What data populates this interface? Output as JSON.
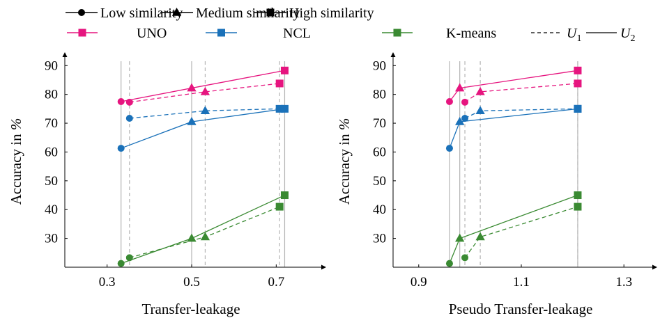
{
  "colors": {
    "uno": "#e6157f",
    "ncl": "#1a71b9",
    "kmeans": "#3a8a32",
    "ref_line": "#b4b4b4"
  },
  "legend": {
    "row1": [
      {
        "marker": "circle",
        "label": "Low similarity"
      },
      {
        "marker": "triangle",
        "label": "Medium similarity"
      },
      {
        "marker": "square",
        "label": "High similarity"
      }
    ],
    "row2": [
      {
        "label": "UNO",
        "color": "#e6157f"
      },
      {
        "label": "NCL",
        "color": "#1a71b9"
      },
      {
        "label": "K-means",
        "color": "#3a8a32"
      }
    ],
    "u1": {
      "style": "dashed",
      "base": "U",
      "sub": "1"
    },
    "u2": {
      "style": "solid",
      "base": "U",
      "sub": "2"
    }
  },
  "chart_data": [
    {
      "type": "line",
      "xlabel": "Transfer-leakage",
      "ylabel_prefix": "Accuracy in ",
      "ylabel_unit": "%",
      "xlim": [
        0.2,
        0.8
      ],
      "ylim": [
        20,
        92
      ],
      "xticks": [
        "0.3",
        "0.5",
        "0.7"
      ],
      "xtick_values": [
        0.3,
        0.5,
        0.7
      ],
      "yticks": [
        "30",
        "40",
        "50",
        "60",
        "70",
        "80",
        "90"
      ],
      "ytick_values": [
        30,
        40,
        50,
        60,
        70,
        80,
        90
      ],
      "reference_x": [
        {
          "x": 0.333,
          "style": "solid"
        },
        {
          "x": 0.353,
          "style": "dashed"
        },
        {
          "x": 0.5,
          "style": "solid"
        },
        {
          "x": 0.532,
          "style": "dashed"
        },
        {
          "x": 0.708,
          "style": "dashed"
        },
        {
          "x": 0.72,
          "style": "solid"
        }
      ],
      "series": [
        {
          "method": "UNO",
          "split": "U1",
          "points": [
            [
              0.353,
              77.3,
              "circle"
            ],
            [
              0.532,
              80.9,
              "triangle"
            ],
            [
              0.708,
              83.8,
              "square"
            ]
          ]
        },
        {
          "method": "UNO",
          "split": "U2",
          "points": [
            [
              0.333,
              77.5,
              "circle"
            ],
            [
              0.5,
              82.2,
              "triangle"
            ],
            [
              0.72,
              88.3,
              "square"
            ]
          ]
        },
        {
          "method": "NCL",
          "split": "U1",
          "points": [
            [
              0.353,
              71.7,
              "circle"
            ],
            [
              0.532,
              74.3,
              "triangle"
            ],
            [
              0.708,
              75.0,
              "square"
            ]
          ]
        },
        {
          "method": "NCL",
          "split": "U2",
          "points": [
            [
              0.333,
              61.3,
              "circle"
            ],
            [
              0.5,
              70.5,
              "triangle"
            ],
            [
              0.72,
              75.0,
              "square"
            ]
          ]
        },
        {
          "method": "K-means",
          "split": "U1",
          "points": [
            [
              0.353,
              23.3,
              "circle"
            ],
            [
              0.532,
              30.5,
              "triangle"
            ],
            [
              0.708,
              41.0,
              "square"
            ]
          ]
        },
        {
          "method": "K-means",
          "split": "U2",
          "points": [
            [
              0.333,
              21.3,
              "circle"
            ],
            [
              0.5,
              30.0,
              "triangle"
            ],
            [
              0.72,
              45.0,
              "square"
            ]
          ]
        }
      ]
    },
    {
      "type": "line",
      "xlabel": "Pseudo Transfer-leakage",
      "ylabel_prefix": "Accuracy in ",
      "ylabel_unit": "%",
      "xlim": [
        0.85,
        1.35
      ],
      "ylim": [
        20,
        92
      ],
      "xticks": [
        "0.9",
        "1.1",
        "1.3"
      ],
      "xtick_values": [
        0.9,
        1.1,
        1.3
      ],
      "yticks": [
        "30",
        "40",
        "50",
        "60",
        "70",
        "80",
        "90"
      ],
      "ytick_values": [
        30,
        40,
        50,
        60,
        70,
        80,
        90
      ],
      "reference_x": [
        {
          "x": 0.96,
          "style": "solid"
        },
        {
          "x": 0.98,
          "style": "solid"
        },
        {
          "x": 0.99,
          "style": "dashed"
        },
        {
          "x": 1.02,
          "style": "dashed"
        },
        {
          "x": 1.21,
          "style": "solid"
        },
        {
          "x": 1.21,
          "style": "dashed"
        }
      ],
      "series": [
        {
          "method": "UNO",
          "split": "U1",
          "points": [
            [
              0.99,
              77.3,
              "circle"
            ],
            [
              1.02,
              80.9,
              "triangle"
            ],
            [
              1.21,
              83.8,
              "square"
            ]
          ]
        },
        {
          "method": "UNO",
          "split": "U2",
          "points": [
            [
              0.96,
              77.5,
              "circle"
            ],
            [
              0.98,
              82.2,
              "triangle"
            ],
            [
              1.21,
              88.3,
              "square"
            ]
          ]
        },
        {
          "method": "NCL",
          "split": "U1",
          "points": [
            [
              0.99,
              71.7,
              "circle"
            ],
            [
              1.02,
              74.3,
              "triangle"
            ],
            [
              1.21,
              75.0,
              "square"
            ]
          ]
        },
        {
          "method": "NCL",
          "split": "U2",
          "points": [
            [
              0.96,
              61.3,
              "circle"
            ],
            [
              0.98,
              70.5,
              "triangle"
            ],
            [
              1.21,
              75.0,
              "square"
            ]
          ]
        },
        {
          "method": "K-means",
          "split": "U1",
          "points": [
            [
              0.99,
              23.3,
              "circle"
            ],
            [
              1.02,
              30.5,
              "triangle"
            ],
            [
              1.21,
              41.0,
              "square"
            ]
          ]
        },
        {
          "method": "K-means",
          "split": "U2",
          "points": [
            [
              0.96,
              21.3,
              "circle"
            ],
            [
              0.98,
              30.0,
              "triangle"
            ],
            [
              1.21,
              45.0,
              "square"
            ]
          ]
        }
      ]
    }
  ]
}
